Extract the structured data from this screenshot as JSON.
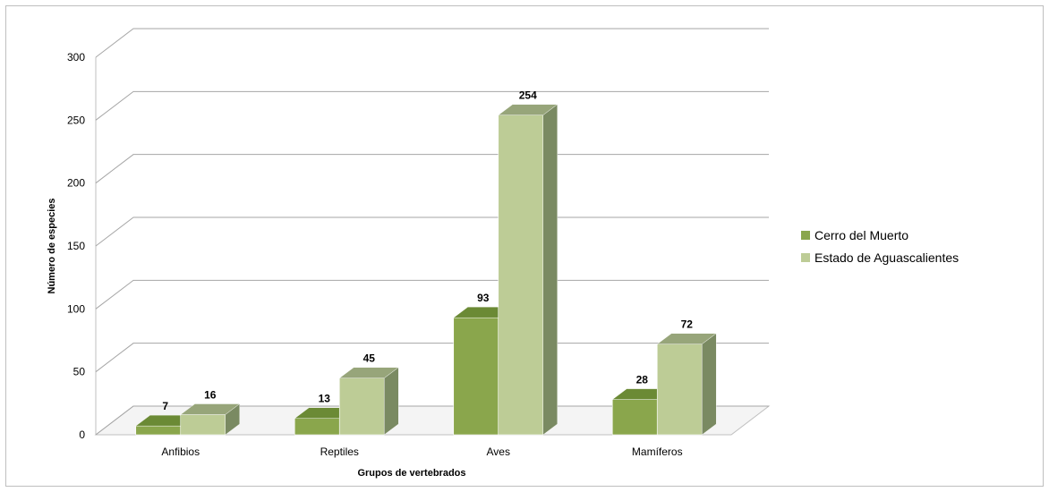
{
  "chart_data": {
    "type": "bar",
    "title": "",
    "xlabel": "Grupos de vertebrados",
    "ylabel": "Número de especies",
    "categories": [
      "Anfibios",
      "Reptiles",
      "Aves",
      "Mamíferos"
    ],
    "series": [
      {
        "name": "Cerro del Muerto",
        "values": [
          7,
          13,
          93,
          28
        ],
        "color": "#8aa64c"
      },
      {
        "name": "Estado de Aguascalientes",
        "values": [
          16,
          45,
          254,
          72
        ],
        "color": "#bdcc96"
      }
    ],
    "ylim": [
      0,
      300
    ],
    "yticks": [
      "0",
      "50",
      "100",
      "150",
      "200",
      "250",
      "300"
    ],
    "grid": true,
    "legend_position": "right",
    "style": "3d-clustered-column"
  }
}
